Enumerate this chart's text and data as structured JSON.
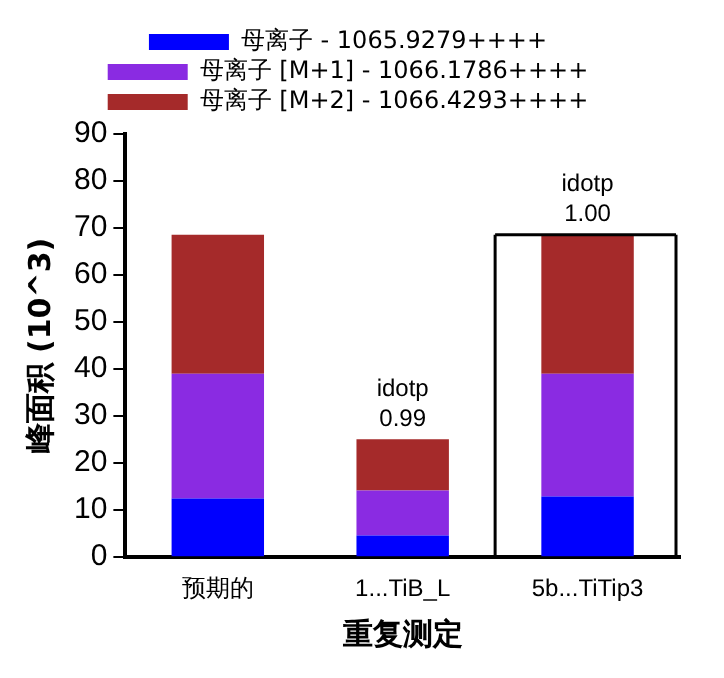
{
  "chart_data": {
    "type": "bar",
    "stacked": true,
    "xlabel": "重复测定",
    "ylabel": "峰面积 (10^3)",
    "categories": [
      "预期的",
      "1...TiB_L",
      "5b...TiTip3"
    ],
    "series": [
      {
        "name": "母离子 - 1065.9279++++",
        "color": "#0000ff",
        "values": [
          12.5,
          4.6,
          12.9
        ]
      },
      {
        "name": "母离子 [M+1] - 1066.1786++++",
        "color": "#8a2be2",
        "values": [
          26.5,
          9.6,
          26.1
        ]
      },
      {
        "name": "母离子 [M+2] - 1066.4293++++",
        "color": "#a52a2a",
        "values": [
          29.6,
          10.9,
          29.6
        ]
      }
    ],
    "ylim": [
      0,
      90
    ],
    "yticks": [
      0,
      10,
      20,
      30,
      40,
      50,
      60,
      70,
      80,
      90
    ],
    "grid": false,
    "legend": "top",
    "annotations": [
      {
        "text": "idotp\n0.99",
        "x": "1...TiB_L",
        "y": 25.1
      },
      {
        "text": "idotp\n1.00",
        "x": "5b...TiTip3",
        "y": 68.6
      }
    ]
  }
}
